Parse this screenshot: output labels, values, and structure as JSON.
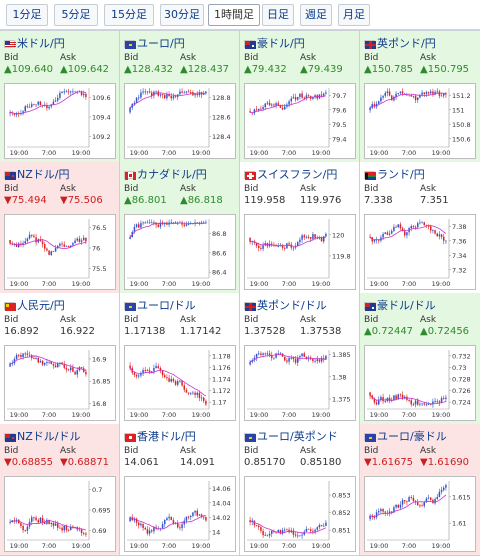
{
  "tabs": [
    {
      "label": "1分足",
      "active": false
    },
    {
      "label": "5分足",
      "active": false
    },
    {
      "label": "15分足",
      "active": false
    },
    {
      "label": "30分足",
      "active": false
    },
    {
      "label": "1時間足",
      "active": true
    },
    {
      "label": "日足",
      "active": false
    },
    {
      "label": "週足",
      "active": false
    },
    {
      "label": "月足",
      "active": false
    }
  ],
  "bid_label": "Bid",
  "ask_label": "Ask",
  "pairs": [
    {
      "name": "米ドル/円",
      "flag": "us",
      "bid": "▲109.640",
      "ask": "▲109.642",
      "trend": "up",
      "chart_data": {
        "type": "candlestick",
        "x_ticks": [
          "19:00",
          "7:00",
          "19:00"
        ],
        "y_ticks": [
          "109.6",
          "109.4",
          "109.2"
        ],
        "ylim": [
          109.1,
          109.7
        ]
      }
    },
    {
      "name": "ユーロ/円",
      "flag": "eu",
      "bid": "▲128.432",
      "ask": "▲128.437",
      "trend": "up",
      "chart_data": {
        "type": "candlestick",
        "x_ticks": [
          "19:00",
          "7:00",
          "19:00"
        ],
        "y_ticks": [
          "128.8",
          "128.6",
          "128.4"
        ],
        "ylim": [
          128.3,
          128.9
        ]
      }
    },
    {
      "name": "豪ドル/円",
      "flag": "au",
      "bid": "▲79.432",
      "ask": "▲79.439",
      "trend": "up",
      "chart_data": {
        "type": "candlestick",
        "x_ticks": [
          "19:00",
          "7:00",
          "19:00"
        ],
        "y_ticks": [
          "79.7",
          "79.6",
          "79.5",
          "79.4"
        ],
        "ylim": [
          79.35,
          79.75
        ]
      }
    },
    {
      "name": "英ポンド/円",
      "flag": "gb",
      "bid": "▲150.785",
      "ask": "▲150.795",
      "trend": "up",
      "chart_data": {
        "type": "candlestick",
        "x_ticks": [
          "19:00",
          "7:00",
          "19:00"
        ],
        "y_ticks": [
          "151.2",
          "151",
          "150.8",
          "150.6"
        ],
        "ylim": [
          150.5,
          151.3
        ]
      }
    },
    {
      "name": "NZドル/円",
      "flag": "nz",
      "bid": "▼75.494",
      "ask": "▼75.506",
      "trend": "down",
      "chart_data": {
        "type": "candlestick",
        "x_ticks": [
          "19:00",
          "7:00",
          "19:00"
        ],
        "y_ticks": [
          "76.5",
          "76",
          "75.5"
        ],
        "ylim": [
          75.3,
          76.7
        ]
      }
    },
    {
      "name": "カナダドル/円",
      "flag": "ca",
      "bid": "▲86.801",
      "ask": "▲86.818",
      "trend": "up",
      "chart_data": {
        "type": "candlestick",
        "x_ticks": [
          "19:00",
          "7:00",
          "19:00"
        ],
        "y_ticks": [
          "86.8",
          "86.6",
          "86.4"
        ],
        "ylim": [
          86.35,
          86.95
        ]
      }
    },
    {
      "name": "スイスフラン/円",
      "flag": "ch",
      "bid": "119.958",
      "ask": "119.976",
      "trend": "flat",
      "chart_data": {
        "type": "candlestick",
        "x_ticks": [
          "19:00",
          "7:00",
          "19:00"
        ],
        "y_ticks": [
          "120",
          "119.8"
        ],
        "ylim": [
          119.6,
          120.15
        ]
      }
    },
    {
      "name": "ランド/円",
      "flag": "za",
      "bid": "7.338",
      "ask": "7.351",
      "trend": "flat",
      "chart_data": {
        "type": "candlestick",
        "x_ticks": [
          "19:00",
          "7:00",
          "19:00"
        ],
        "y_ticks": [
          "7.38",
          "7.36",
          "7.34",
          "7.32"
        ],
        "ylim": [
          7.31,
          7.39
        ]
      }
    },
    {
      "name": "人民元/円",
      "flag": "cn",
      "bid": "16.892",
      "ask": "16.922",
      "trend": "flat",
      "chart_data": {
        "type": "candlestick",
        "x_ticks": [
          "19:00",
          "7:00",
          "19:00"
        ],
        "y_ticks": [
          "16.9",
          "16.85",
          "16.8"
        ],
        "ylim": [
          16.79,
          16.92
        ]
      }
    },
    {
      "name": "ユーロ/ドル",
      "flag": "eu",
      "bid": "1.17138",
      "ask": "1.17142",
      "trend": "flat",
      "chart_data": {
        "type": "candlestick",
        "x_ticks": [
          "19:00",
          "7:00",
          "19:00"
        ],
        "y_ticks": [
          "1.178",
          "1.176",
          "1.174",
          "1.172",
          "1.17"
        ],
        "ylim": [
          1.169,
          1.179
        ]
      }
    },
    {
      "name": "英ポンド/ドル",
      "flag": "gb",
      "bid": "1.37528",
      "ask": "1.37538",
      "trend": "flat",
      "chart_data": {
        "type": "candlestick",
        "x_ticks": [
          "19:00",
          "7:00",
          "19:00"
        ],
        "y_ticks": [
          "1.385",
          "1.38",
          "1.375"
        ],
        "ylim": [
          1.373,
          1.386
        ]
      }
    },
    {
      "name": "豪ドル/ドル",
      "flag": "au",
      "bid": "▲0.72447",
      "ask": "▲0.72456",
      "trend": "up",
      "chart_data": {
        "type": "candlestick",
        "x_ticks": [
          "19:00",
          "7:00",
          "19:00"
        ],
        "y_ticks": [
          "0.732",
          "0.73",
          "0.728",
          "0.726",
          "0.724"
        ],
        "ylim": [
          0.723,
          0.733
        ]
      }
    },
    {
      "name": "NZドル/ドル",
      "flag": "nz",
      "bid": "▼0.68855",
      "ask": "▼0.68871",
      "trend": "down",
      "chart_data": {
        "type": "candlestick",
        "x_ticks": [
          "19:00",
          "7:00",
          "19:00"
        ],
        "y_ticks": [
          "0.7",
          "0.695",
          "0.69"
        ],
        "ylim": [
          0.688,
          0.702
        ]
      }
    },
    {
      "name": "香港ドル/円",
      "flag": "hk",
      "bid": "14.061",
      "ask": "14.091",
      "trend": "flat",
      "chart_data": {
        "type": "candlestick",
        "x_ticks": [
          "19:00",
          "7:00",
          "19:00"
        ],
        "y_ticks": [
          "14.06",
          "14.04",
          "14.02",
          "14"
        ],
        "ylim": [
          13.99,
          14.07
        ]
      }
    },
    {
      "name": "ユーロ/英ポンド",
      "flag": "eu",
      "bid": "0.85170",
      "ask": "0.85180",
      "trend": "flat",
      "chart_data": {
        "type": "candlestick",
        "x_ticks": [
          "19:00",
          "7:00",
          "19:00"
        ],
        "y_ticks": [
          "0.853",
          "0.852",
          "0.851"
        ],
        "ylim": [
          0.8505,
          0.8538
        ]
      }
    },
    {
      "name": "ユーロ/豪ドル",
      "flag": "eu",
      "bid": "▼1.61675",
      "ask": "▼1.61690",
      "trend": "down",
      "chart_data": {
        "type": "candlestick",
        "x_ticks": [
          "19:00",
          "7:00",
          "19:00"
        ],
        "y_ticks": [
          "1.615",
          "1.61"
        ],
        "ylim": [
          1.607,
          1.618
        ]
      }
    }
  ],
  "colors": {
    "up_bg": "#e4f7e0",
    "down_bg": "#fde4e4",
    "up_text": "#2e8b2e",
    "down_text": "#cc1f1f",
    "candle_up": "#3355cc",
    "candle_down": "#dd2222",
    "moving_average": "#cc33cc",
    "link": "#0b3a8a"
  }
}
